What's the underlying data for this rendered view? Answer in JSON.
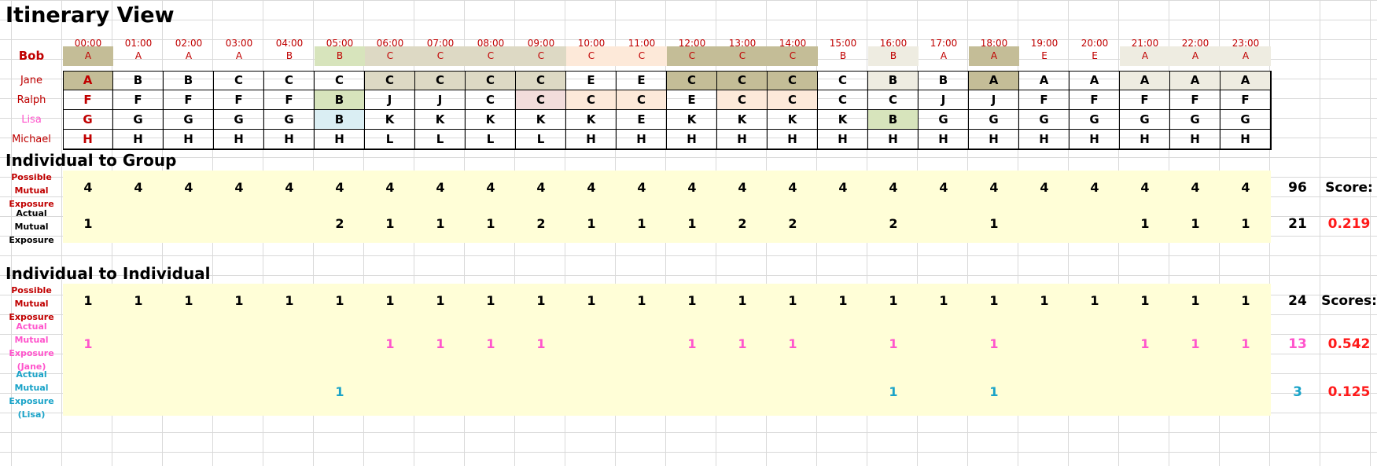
{
  "title": "Itinerary View",
  "hours": [
    "00:00",
    "01:00",
    "02:00",
    "03:00",
    "04:00",
    "05:00",
    "06:00",
    "07:00",
    "08:00",
    "09:00",
    "10:00",
    "11:00",
    "12:00",
    "13:00",
    "14:00",
    "15:00",
    "16:00",
    "17:00",
    "18:00",
    "19:00",
    "20:00",
    "21:00",
    "22:00",
    "23:00"
  ],
  "people": [
    {
      "name": "Bob",
      "cells": [
        "A",
        "A",
        "A",
        "A",
        "B",
        "B",
        "C",
        "C",
        "C",
        "C",
        "C",
        "C",
        "C",
        "C",
        "C",
        "B",
        "B",
        "A",
        "A",
        "E",
        "E",
        "A",
        "A",
        "A"
      ],
      "colors": [
        "#c4bd97",
        "",
        "",
        "",
        "",
        "#d7e4bc",
        "#ddd9c4",
        "#ddd9c4",
        "#ddd9c4",
        "#ddd9c4",
        "#fde9d9",
        "#fde9d9",
        "#c4bd97",
        "#c4bd97",
        "#c4bd97",
        "",
        "#eeece1",
        "",
        "#c4bd97",
        "",
        "",
        "#eeece1",
        "#eeece1",
        "#eeece1"
      ]
    },
    {
      "name": "Jane",
      "cells": [
        "A",
        "B",
        "B",
        "C",
        "C",
        "C",
        "C",
        "C",
        "C",
        "C",
        "E",
        "E",
        "C",
        "C",
        "C",
        "C",
        "B",
        "B",
        "A",
        "A",
        "A",
        "A",
        "A",
        "A"
      ],
      "colors": [
        "#c4bd97",
        "",
        "",
        "",
        "",
        "",
        "#ddd9c4",
        "#ddd9c4",
        "#ddd9c4",
        "#ddd9c4",
        "",
        "",
        "#c4bd97",
        "#c4bd97",
        "#c4bd97",
        "",
        "#eeece1",
        "",
        "#c4bd97",
        "",
        "",
        "#eeece1",
        "#eeece1",
        "#eeece1"
      ]
    },
    {
      "name": "Ralph",
      "cells": [
        "F",
        "F",
        "F",
        "F",
        "F",
        "B",
        "J",
        "J",
        "C",
        "C",
        "C",
        "C",
        "E",
        "C",
        "C",
        "C",
        "C",
        "J",
        "J",
        "F",
        "F",
        "F",
        "F",
        "F"
      ],
      "colors": [
        "",
        "",
        "",
        "",
        "",
        "#d7e4bc",
        "",
        "",
        "",
        "#f2dcdb",
        "#fde9d9",
        "#fde9d9",
        "",
        "#fde9d9",
        "#fde9d9",
        "",
        "",
        "",
        "",
        "",
        "",
        "",
        "",
        ""
      ]
    },
    {
      "name": "Lisa",
      "cells": [
        "G",
        "G",
        "G",
        "G",
        "G",
        "B",
        "K",
        "K",
        "K",
        "K",
        "K",
        "E",
        "K",
        "K",
        "K",
        "K",
        "B",
        "G",
        "G",
        "G",
        "G",
        "G",
        "G",
        "G"
      ],
      "colors": [
        "",
        "",
        "",
        "",
        "",
        "#daeef3",
        "",
        "",
        "",
        "",
        "",
        "",
        "",
        "",
        "",
        "",
        "#d7e4bc",
        "",
        "",
        "",
        "",
        "",
        "",
        ""
      ]
    },
    {
      "name": "Michael",
      "cells": [
        "H",
        "H",
        "H",
        "H",
        "H",
        "H",
        "L",
        "L",
        "L",
        "L",
        "H",
        "H",
        "H",
        "H",
        "H",
        "H",
        "H",
        "H",
        "H",
        "H",
        "H",
        "H",
        "H",
        "H"
      ],
      "colors": [
        "",
        "",
        "",
        "",
        "",
        "",
        "",
        "",
        "",
        "",
        "",
        "",
        "",
        "",
        "",
        "",
        "",
        "",
        "",
        "",
        "",
        "",
        "",
        ""
      ]
    }
  ],
  "group": {
    "title": "Individual to Group",
    "possible_label": "Possible Mutual Exposure",
    "actual_label": "Actual Mutual Exposure",
    "possible": [
      "4",
      "4",
      "4",
      "4",
      "4",
      "4",
      "4",
      "4",
      "4",
      "4",
      "4",
      "4",
      "4",
      "4",
      "4",
      "4",
      "4",
      "4",
      "4",
      "4",
      "4",
      "4",
      "4",
      "4"
    ],
    "actual": [
      "1",
      "",
      "",
      "",
      "",
      "2",
      "1",
      "1",
      "1",
      "2",
      "1",
      "1",
      "1",
      "2",
      "2",
      "",
      "2",
      "",
      "1",
      "",
      "",
      "1",
      "1",
      "1"
    ],
    "possible_total": "96",
    "actual_total": "21",
    "score_label": "Score:",
    "score": "0.219"
  },
  "individual": {
    "title": "Individual to Individual",
    "possible_label": "Possible Mutual Exposure",
    "jane_label": "Actual Mutual Exposure (Jane)",
    "lisa_label": "Actual Mutual Exposure (Lisa)",
    "possible": [
      "1",
      "1",
      "1",
      "1",
      "1",
      "1",
      "1",
      "1",
      "1",
      "1",
      "1",
      "1",
      "1",
      "1",
      "1",
      "1",
      "1",
      "1",
      "1",
      "1",
      "1",
      "1",
      "1",
      "1"
    ],
    "jane": [
      "1",
      "",
      "",
      "",
      "",
      "",
      "1",
      "1",
      "1",
      "1",
      "",
      "",
      "1",
      "1",
      "1",
      "",
      "1",
      "",
      "1",
      "",
      "",
      "1",
      "1",
      "1"
    ],
    "lisa": [
      "",
      "",
      "",
      "",
      "",
      "1",
      "",
      "",
      "",
      "",
      "",
      "",
      "",
      "",
      "",
      "",
      "1",
      "",
      "1",
      "",
      "",
      "",
      "",
      ""
    ],
    "possible_total": "24",
    "jane_total": "13",
    "lisa_total": "3",
    "score_label": "Scores:",
    "jane_score": "0.542",
    "lisa_score": "0.125"
  },
  "colors": {
    "red": "#c00000",
    "pink": "#ff55cc",
    "blue": "#1aa3c8",
    "band": "#fffed7",
    "score": "#ff1a1a"
  }
}
